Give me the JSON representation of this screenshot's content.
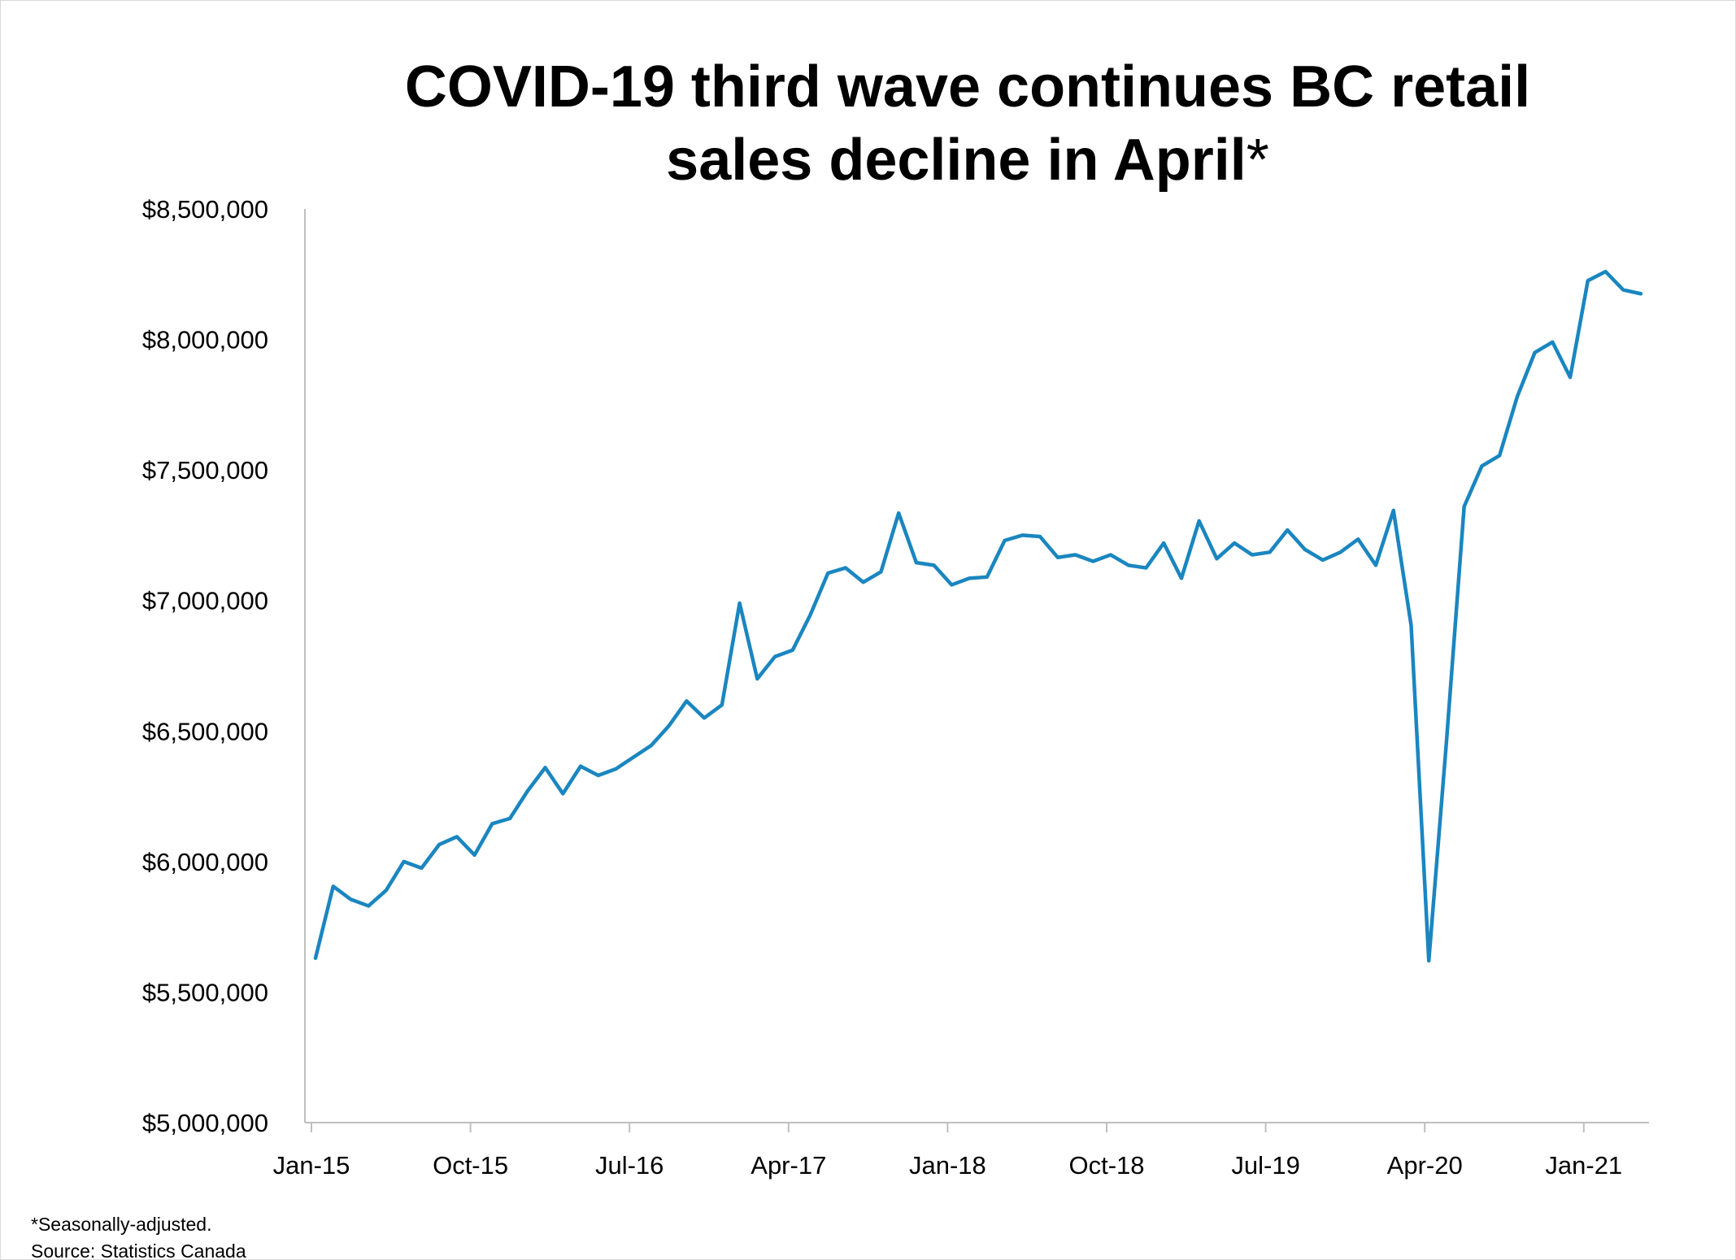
{
  "chart_data": {
    "type": "line",
    "title_main": "COVID-19 third wave continues BC retail sales decline in April",
    "title_mark": "*",
    "xlabel": "",
    "ylabel": "",
    "ylim": [
      5000000,
      8500000
    ],
    "y_ticks": [
      5000000,
      5500000,
      6000000,
      6500000,
      7000000,
      7500000,
      8000000,
      8500000
    ],
    "y_tick_labels": [
      "$5,000,000",
      "$5,500,000",
      "$6,000,000",
      "$6,500,000",
      "$7,000,000",
      "$7,500,000",
      "$8,000,000",
      "$8,500,000"
    ],
    "x_tick_labels": [
      {
        "label": "Jan-15",
        "index": 0
      },
      {
        "label": "Oct-15",
        "index": 9
      },
      {
        "label": "Jul-16",
        "index": 18
      },
      {
        "label": "Apr-17",
        "index": 27
      },
      {
        "label": "Jan-18",
        "index": 36
      },
      {
        "label": "Oct-18",
        "index": 45
      },
      {
        "label": "Jul-19",
        "index": 54
      },
      {
        "label": "Apr-20",
        "index": 63
      },
      {
        "label": "Jan-21",
        "index": 72
      }
    ],
    "x_start": "Jan-15",
    "x_end": "Apr-21",
    "grid": false,
    "legend": "none",
    "line_color": "#1a86c0",
    "series": [
      {
        "values": [
          5630000,
          5905000,
          5855000,
          5830000,
          5890000,
          6000000,
          5975000,
          6065000,
          6095000,
          6025000,
          6145000,
          6165000,
          6270000,
          6360000,
          6260000,
          6365000,
          6330000,
          6355000,
          6400000,
          6445000,
          6520000,
          6615000,
          6550000,
          6600000,
          6990000,
          6700000,
          6785000,
          6810000,
          6945000,
          7105000,
          7125000,
          7070000,
          7110000,
          7335000,
          7145000,
          7135000,
          7060000,
          7085000,
          7090000,
          7230000,
          7250000,
          7245000,
          7165000,
          7175000,
          7150000,
          7175000,
          7135000,
          7125000,
          7220000,
          7085000,
          7305000,
          7160000,
          7220000,
          7175000,
          7185000,
          7270000,
          7195000,
          7155000,
          7185000,
          7235000,
          7135000,
          7345000,
          6905000,
          5620000,
          6460000,
          7360000,
          7515000,
          7555000,
          7780000,
          7950000,
          7990000,
          7855000,
          8225000,
          8260000,
          8190000,
          8175000
        ]
      }
    ]
  },
  "footnote": {
    "line1": "*Seasonally-adjusted.",
    "line2": "Source: Statistics Canada"
  }
}
